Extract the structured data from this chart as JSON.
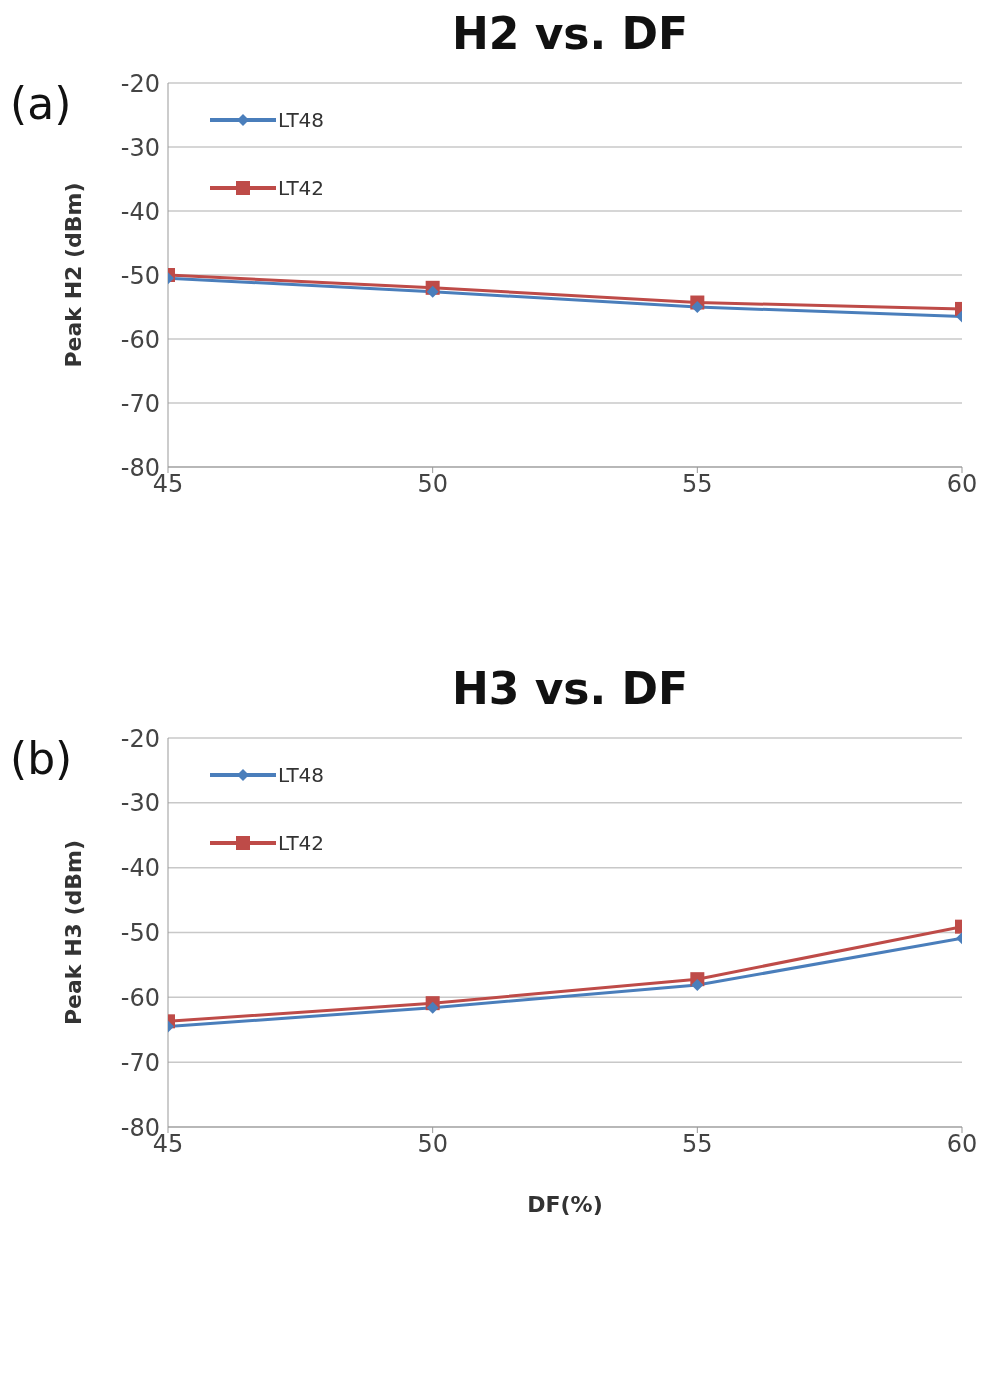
{
  "chart_data": [
    {
      "type": "line",
      "title": "H2 vs. DF",
      "ylabel": "Peak H2 (dBm)",
      "annotations": [
        "(a)"
      ],
      "x": [
        45,
        50,
        55,
        60
      ],
      "xlim": [
        45,
        60
      ],
      "xticks": [
        45,
        50,
        55,
        60
      ],
      "ylim": [
        -80,
        -20
      ],
      "yticks": [
        -80,
        -70,
        -60,
        -50,
        -40,
        -30,
        -20
      ],
      "grid": "y",
      "legend": "top left",
      "series": [
        {
          "name": "LT48",
          "color": "#4a7ebb",
          "marker": "diamond",
          "values": [
            -50.5,
            -52.6,
            -55,
            -56.5
          ]
        },
        {
          "name": "LT42",
          "color": "#be4b48",
          "marker": "square",
          "values": [
            -50,
            -52,
            -54.3,
            -55.3
          ]
        }
      ]
    },
    {
      "type": "line",
      "title": "H3 vs. DF",
      "ylabel": "Peak H3 (dBm)",
      "xlabel": "DF(%)",
      "annotations": [
        "(b)"
      ],
      "x": [
        45,
        50,
        55,
        60
      ],
      "xlim": [
        45,
        60
      ],
      "xticks": [
        45,
        50,
        55,
        60
      ],
      "ylim": [
        -80,
        -20
      ],
      "yticks": [
        -80,
        -70,
        -60,
        -50,
        -40,
        -30,
        -20
      ],
      "grid": "y",
      "legend": "top left",
      "series": [
        {
          "name": "LT48",
          "color": "#4a7ebb",
          "marker": "diamond",
          "values": [
            -64.5,
            -61.6,
            -58.1,
            -50.9
          ]
        },
        {
          "name": "LT42",
          "color": "#be4b48",
          "marker": "square",
          "values": [
            -63.7,
            -60.9,
            -57.2,
            -49.1
          ]
        }
      ]
    }
  ]
}
